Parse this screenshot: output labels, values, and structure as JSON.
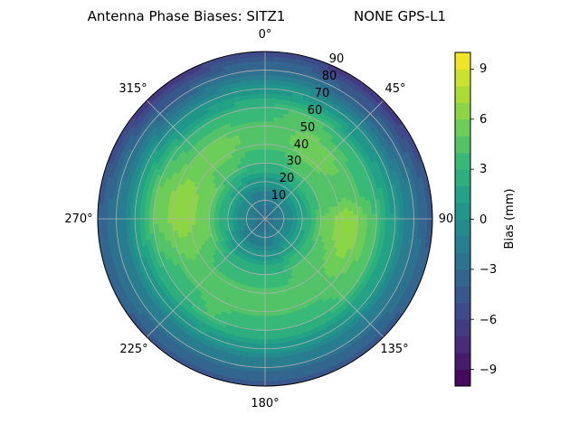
{
  "chart_data": {
    "type": "polar-contour",
    "title": "Antenna Phase Biases: SITZ1",
    "subtitle": "NONE GPS-L1",
    "angular_ticks": [
      "0°",
      "45°",
      "90",
      "135°",
      "180°",
      "225°",
      "270°",
      "315°"
    ],
    "radial_ticks": [
      "10",
      "20",
      "30",
      "40",
      "50",
      "60",
      "70",
      "80",
      "90"
    ],
    "colorbar": {
      "label": "Bias (mm)",
      "ticks": [
        "9",
        "6",
        "3",
        "0",
        "−3",
        "−6",
        "−9"
      ],
      "range": [
        -10,
        10
      ],
      "colormap": [
        "#440154",
        "#482878",
        "#3e4989",
        "#31688e",
        "#26828e",
        "#1f9e89",
        "#35b779",
        "#6ece58",
        "#b5de2b",
        "#fde725"
      ]
    },
    "rings_zenith_angle_deg": [
      0,
      15,
      30,
      45,
      60,
      75,
      90
    ],
    "bias_mm_by_ring": [
      [
        -3,
        -3,
        -3,
        -3,
        -3,
        -3,
        -3,
        -3,
        -3,
        -3,
        -3,
        -3,
        -3,
        -3,
        -3,
        -3,
        -3,
        -3,
        -3,
        -3,
        -3,
        -3,
        -3,
        -3
      ],
      [
        -1,
        -1,
        -1,
        0,
        0,
        0,
        0,
        0,
        0,
        0,
        0,
        -1,
        -1,
        -1,
        -1,
        -1,
        -1,
        0,
        0,
        0,
        0,
        0,
        -1,
        -1
      ],
      [
        3,
        3,
        4,
        4,
        4,
        4,
        5,
        5,
        4,
        4,
        4,
        3,
        3,
        3,
        3,
        3,
        4,
        5,
        5,
        5,
        5,
        4,
        4,
        3
      ],
      [
        5,
        5,
        6,
        6,
        5,
        5,
        7,
        7,
        6,
        5,
        5,
        5,
        5,
        5,
        5,
        5,
        5,
        6,
        7,
        7,
        6,
        6,
        6,
        5
      ],
      [
        3,
        4,
        4,
        3,
        3,
        3,
        4,
        4,
        4,
        4,
        3,
        3,
        3,
        3,
        4,
        3,
        3,
        4,
        5,
        5,
        4,
        3,
        3,
        3
      ],
      [
        -1,
        -1,
        -2,
        -2,
        -2,
        -1,
        -1,
        -1,
        -1,
        -1,
        -1,
        -1,
        -1,
        -1,
        -1,
        -1,
        -1,
        -1,
        -1,
        -1,
        -1,
        -2,
        -2,
        -1
      ],
      [
        -6,
        -6,
        -7,
        -7,
        -6,
        -5,
        -5,
        -4,
        -4,
        -5,
        -5,
        -5,
        -5,
        -5,
        -5,
        -5,
        -4,
        -4,
        -4,
        -5,
        -6,
        -7,
        -7,
        -6
      ]
    ]
  }
}
